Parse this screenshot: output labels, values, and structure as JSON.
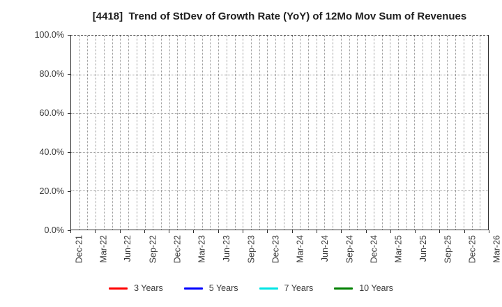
{
  "chart_data": {
    "type": "line",
    "title": "[4418]  Trend of StDev of Growth Rate (YoY) of 12Mo Mov Sum of Revenues",
    "xlabel": "",
    "ylabel": "",
    "x_tick_labels": [
      "Dec-21",
      "Mar-22",
      "Jun-22",
      "Sep-22",
      "Dec-22",
      "Mar-23",
      "Jun-23",
      "Sep-23",
      "Dec-23",
      "Mar-24",
      "Jun-24",
      "Sep-24",
      "Dec-24",
      "Mar-25",
      "Jun-25",
      "Sep-25",
      "Dec-25",
      "Mar-26"
    ],
    "x_minor_gridline_interval": "monthly",
    "x_total_month_intervals": 51,
    "y_tick_labels": [
      "0.0%",
      "20.0%",
      "40.0%",
      "60.0%",
      "80.0%",
      "100.0%"
    ],
    "ylim": [
      0,
      100
    ],
    "y_gridline_step_pct": 20,
    "grid": "dotted",
    "grid_color": "#9a9a9a",
    "axis_color": "#2e2e2e",
    "legend_position": "bottom",
    "series": [
      {
        "name": "3 Years",
        "color": "#ff0000",
        "x": [],
        "values": []
      },
      {
        "name": "5 Years",
        "color": "#0000ff",
        "x": [],
        "values": []
      },
      {
        "name": "7 Years",
        "color": "#00e5e5",
        "x": [],
        "values": []
      },
      {
        "name": "10 Years",
        "color": "#008000",
        "x": [],
        "values": []
      }
    ],
    "plot_is_empty": true
  }
}
